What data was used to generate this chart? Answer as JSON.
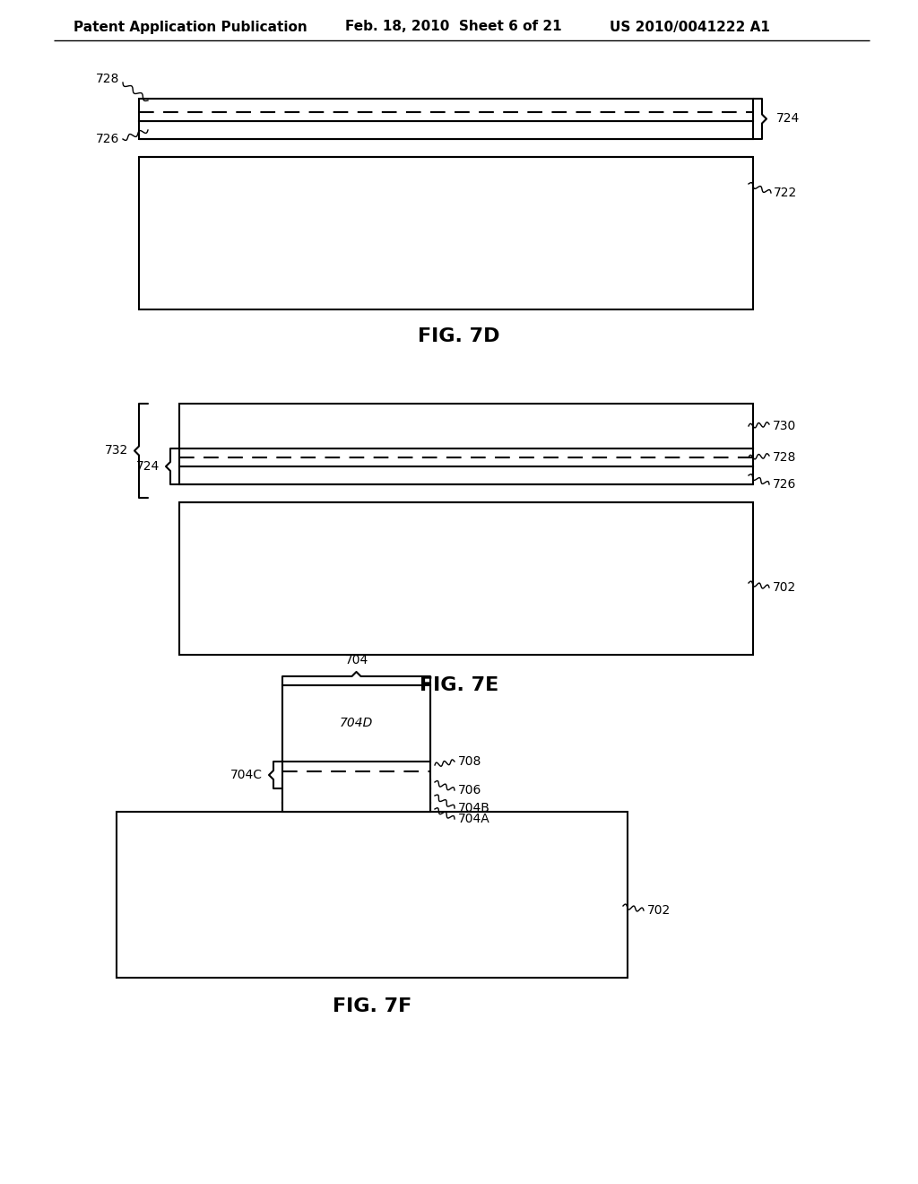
{
  "bg_color": "#ffffff",
  "line_color": "#000000",
  "header_left": "Patent Application Publication",
  "header_mid": "Feb. 18, 2010  Sheet 6 of 21",
  "header_right": "US 2010/0041222 A1",
  "fig7d_title": "FIG. 7D",
  "fig7e_title": "FIG. 7E",
  "fig7f_title": "FIG. 7F"
}
